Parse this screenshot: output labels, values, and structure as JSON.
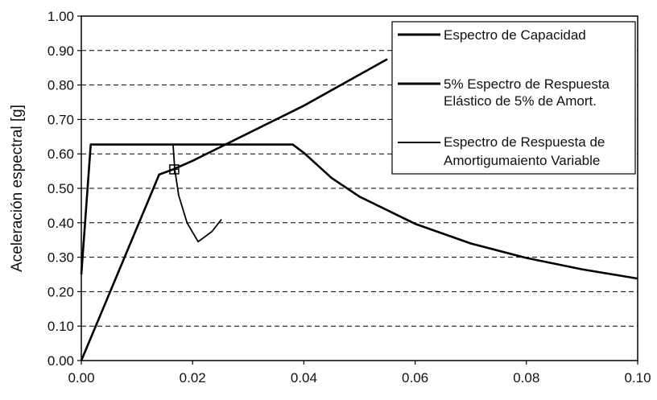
{
  "chart_data": {
    "type": "line",
    "ylabel": "Aceleración espectral [g]",
    "xlabel": "",
    "xlim": [
      0,
      0.1
    ],
    "ylim": [
      0,
      1.0
    ],
    "x_ticks": [
      "0.00",
      "0.02",
      "0.04",
      "0.06",
      "0.08",
      "0.10"
    ],
    "y_ticks": [
      "0.00",
      "0.10",
      "0.20",
      "0.30",
      "0.40",
      "0.50",
      "0.60",
      "0.70",
      "0.80",
      "0.90",
      "1.00"
    ],
    "grid": "horizontal dashed",
    "legend_position": "top-right",
    "series": [
      {
        "name": "Espectro de Capacidad",
        "points": [
          [
            0,
            0
          ],
          [
            0.014,
            0.54
          ],
          [
            0.0165,
            0.555
          ],
          [
            0.02,
            0.58
          ],
          [
            0.04,
            0.74
          ],
          [
            0.055,
            0.875
          ]
        ]
      },
      {
        "name": "5% Espectro de Respuesta Elástico de 5% de Amort.",
        "points": [
          [
            0,
            0.25
          ],
          [
            0.0017,
            0.627
          ],
          [
            0.038,
            0.627
          ],
          [
            0.04,
            0.603
          ],
          [
            0.045,
            0.53
          ],
          [
            0.05,
            0.476
          ],
          [
            0.06,
            0.397
          ],
          [
            0.07,
            0.34
          ],
          [
            0.08,
            0.298
          ],
          [
            0.09,
            0.265
          ],
          [
            0.1,
            0.238
          ]
        ]
      },
      {
        "name": "Espectro de Respuesta de Amortigumaiento Variable",
        "points": [
          [
            0.0165,
            0.625
          ],
          [
            0.0168,
            0.555
          ],
          [
            0.0175,
            0.48
          ],
          [
            0.019,
            0.4
          ],
          [
            0.021,
            0.345
          ],
          [
            0.0235,
            0.375
          ],
          [
            0.0252,
            0.41
          ]
        ]
      }
    ],
    "legend": [
      "Espectro de Capacidad",
      "5% Espectro de Respuesta",
      "Elástico de 5% de Amort.",
      "Espectro de Respuesta de",
      "Amortigumaiento Variable"
    ],
    "performance_point": {
      "x": 0.0167,
      "y": 0.555
    }
  }
}
